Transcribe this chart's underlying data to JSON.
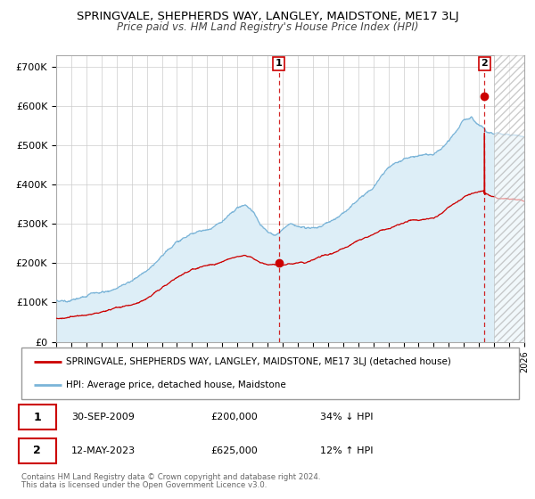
{
  "title": "SPRINGVALE, SHEPHERDS WAY, LANGLEY, MAIDSTONE, ME17 3LJ",
  "subtitle": "Price paid vs. HM Land Registry's House Price Index (HPI)",
  "title_fontsize": 9.5,
  "subtitle_fontsize": 8.5,
  "hpi_color": "#7ab4d8",
  "hpi_fill_color": "#ddeef7",
  "price_color": "#cc0000",
  "background_color": "#ffffff",
  "plot_bg_color": "#ffffff",
  "grid_color": "#cccccc",
  "ylim": [
    0,
    730000
  ],
  "yticks": [
    0,
    100000,
    200000,
    300000,
    400000,
    500000,
    600000,
    700000
  ],
  "ann1_x": 2009.75,
  "ann1_y": 200000,
  "ann2_x": 2023.36,
  "ann2_y": 625000,
  "legend_line1": "SPRINGVALE, SHEPHERDS WAY, LANGLEY, MAIDSTONE, ME17 3LJ (detached house)",
  "legend_line2": "HPI: Average price, detached house, Maidstone",
  "footer_line1": "Contains HM Land Registry data © Crown copyright and database right 2024.",
  "footer_line2": "This data is licensed under the Open Government Licence v3.0.",
  "ann1_date": "30-SEP-2009",
  "ann1_price": "£200,000",
  "ann1_pct": "34% ↓ HPI",
  "ann2_date": "12-MAY-2023",
  "ann2_price": "£625,000",
  "ann2_pct": "12% ↑ HPI",
  "xmin": 1995.0,
  "xmax": 2026.0,
  "hatch_start": 2024.0
}
